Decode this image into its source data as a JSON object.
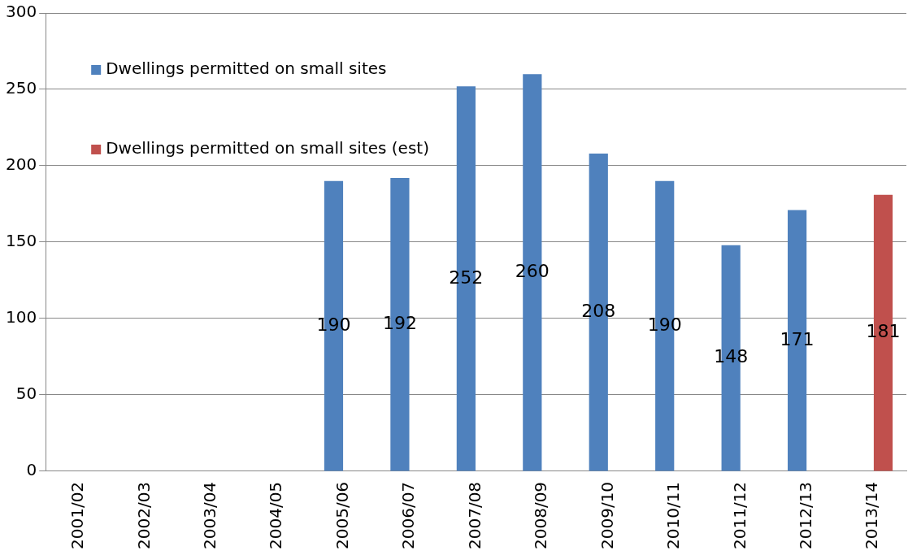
{
  "chart_data": {
    "type": "bar",
    "categories": [
      "2001/02",
      "2002/03",
      "2003/04",
      "2004/05",
      "2005/06",
      "2006/07",
      "2007/08",
      "2008/09",
      "2009/10",
      "2010/11",
      "2011/12",
      "2012/13",
      "2013/14"
    ],
    "series": [
      {
        "name": "Dwellings permitted on small sites",
        "color": "#4f81bd",
        "values": [
          null,
          null,
          null,
          null,
          190,
          192,
          252,
          260,
          208,
          190,
          148,
          171,
          null
        ]
      },
      {
        "name": "Dwellings permitted on small sites (est)",
        "color": "#c0504d",
        "values": [
          null,
          null,
          null,
          null,
          null,
          null,
          null,
          null,
          null,
          null,
          null,
          null,
          181
        ]
      }
    ],
    "ylim": [
      0,
      300
    ],
    "yticks": [
      0,
      50,
      100,
      150,
      200,
      250,
      300
    ],
    "grid": "y",
    "legend": "top left",
    "data_labels": true
  }
}
